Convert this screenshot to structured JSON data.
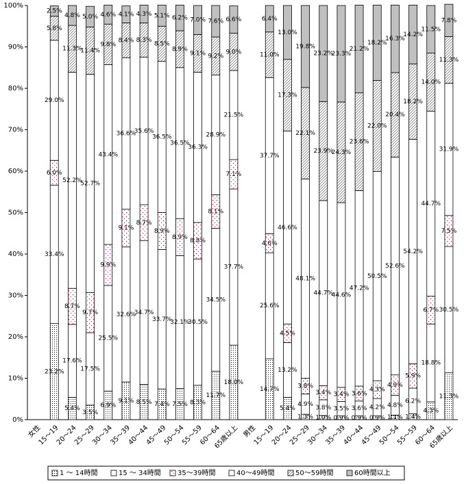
{
  "chart_data": {
    "type": "stacked-bar",
    "categories": [
      "女性",
      "15～19",
      "20～24",
      "25～29",
      "30～34",
      "35～39",
      "40～44",
      "45～49",
      "50～54",
      "55～59",
      "60～64",
      "65歳以上",
      "男性",
      "15～19",
      "20～24",
      "25～29",
      "30～34",
      "35～39",
      "40～44",
      "45～49",
      "50～54",
      "55～59",
      "60～64",
      "65歳以上"
    ],
    "ylim": [
      0,
      100
    ],
    "yticks": [
      {
        "value": 0,
        "label": "0%"
      },
      {
        "value": 10,
        "label": "10%"
      },
      {
        "value": 20,
        "label": "20%"
      },
      {
        "value": 30,
        "label": "30%"
      },
      {
        "value": 40,
        "label": "40%"
      },
      {
        "value": 50,
        "label": "50%"
      },
      {
        "value": 60,
        "label": "60%"
      },
      {
        "value": 70,
        "label": "70%"
      },
      {
        "value": 80,
        "label": "80%"
      },
      {
        "value": 90,
        "label": "90%"
      },
      {
        "value": 100,
        "label": "100%"
      }
    ],
    "series": [
      {
        "name": "1 ～ 14時間",
        "color": "#000000",
        "pattern": "dots",
        "values": [
          null,
          23.2,
          5.4,
          3.5,
          6.9,
          9.1,
          8.5,
          7.4,
          7.5,
          8.3,
          11.7,
          18.0,
          null,
          14.7,
          5.4,
          1.3,
          1.0,
          0.9,
          0.9,
          0.9,
          1.1,
          1.4,
          4.3,
          11.3
        ],
        "value_labels": [
          null,
          "23.2%",
          "5.4%",
          "3.5%",
          "6.9%",
          "9.1%",
          "8.5%",
          "7.4%",
          "7.5%",
          "8.3%",
          "11.7%",
          "18.0%",
          null,
          "14.7%",
          "5.4%",
          "1.3%",
          "1.0%",
          "0.9%",
          "0.9%",
          "0.9%",
          "1.1%",
          "1.4%",
          "4.3%",
          "11.3%"
        ]
      },
      {
        "name": "15 ～ 34時間",
        "color": "#ffffff",
        "pattern": "solid",
        "values": [
          null,
          33.4,
          17.6,
          17.5,
          25.5,
          32.6,
          34.7,
          33.7,
          32.1,
          30.5,
          34.5,
          37.7,
          null,
          25.6,
          13.2,
          4.9,
          3.8,
          3.5,
          3.6,
          4.2,
          4.8,
          6.2,
          18.8,
          30.5
        ],
        "value_labels": [
          null,
          "33.4%",
          "17.6%",
          "17.5%",
          "25.5%",
          "32.6%",
          "34.7%",
          "33.7%",
          "32.1%",
          "30.5%",
          "34.5%",
          "37.7%",
          null,
          "25.6%",
          "13.2%",
          "4.9%",
          "3.8%",
          "3.5%",
          "3.6%",
          "4.2%",
          "4.8%",
          "6.2%",
          "18.8%",
          "30.5%"
        ]
      },
      {
        "name": "35～39時間",
        "color": "#cc0033",
        "pattern": "sparse-dots",
        "values": [
          null,
          6.0,
          8.7,
          9.7,
          9.9,
          9.1,
          8.7,
          8.9,
          8.9,
          8.8,
          8.1,
          7.1,
          null,
          4.6,
          4.5,
          3.8,
          3.4,
          3.4,
          3.6,
          4.3,
          4.9,
          5.9,
          6.7,
          7.5
        ],
        "value_labels": [
          null,
          "6.0%",
          "8.7%",
          "9.7%",
          "9.9%",
          "9.1%",
          "8.7%",
          "8.9%",
          "8.9%",
          "8.8%",
          "8.1%",
          "7.1%",
          null,
          "4.6%",
          "4.5%",
          "3.8%",
          "3.4%",
          "3.4%",
          "3.6%",
          "4.3%",
          "4.9%",
          "5.9%",
          "6.7%",
          "7.5%"
        ]
      },
      {
        "name": "40～49時間",
        "color": "#ffffff",
        "pattern": "solid",
        "values": [
          null,
          29.0,
          52.2,
          52.7,
          43.4,
          36.6,
          35.6,
          36.5,
          36.5,
          36.3,
          28.9,
          21.5,
          null,
          37.7,
          46.6,
          48.1,
          44.7,
          44.6,
          47.2,
          50.5,
          52.6,
          54.2,
          44.7,
          31.9
        ],
        "value_labels": [
          null,
          "29.0%",
          "52.2%",
          "52.7%",
          "43.4%",
          "36.6%",
          "35.6%",
          "36.5%",
          "36.5%",
          "36.3%",
          "28.9%",
          "21.5%",
          null,
          "37.7%",
          "46.6%",
          "48.1%",
          "44.7%",
          "44.6%",
          "47.2%",
          "50.5%",
          "52.6%",
          "54.2%",
          "44.7%",
          "31.9%"
        ]
      },
      {
        "name": "50～59時間",
        "color": "#808080",
        "pattern": "hatch",
        "values": [
          null,
          5.8,
          11.3,
          11.4,
          9.8,
          8.4,
          8.3,
          8.5,
          8.9,
          9.1,
          9.2,
          9.0,
          null,
          11.0,
          17.3,
          22.1,
          23.9,
          24.3,
          23.6,
          22.0,
          20.4,
          18.2,
          14.0,
          11.3
        ],
        "value_labels": [
          null,
          "5.8%",
          "11.3%",
          "11.4%",
          "9.8%",
          "8.4%",
          "8.3%",
          "8.5%",
          "8.9%",
          "9.1%",
          "9.2%",
          "9.0%",
          null,
          "11.0%",
          "17.3%",
          "22.1%",
          "23.9%",
          "24.3%",
          "23.6%",
          "22.0%",
          "20.4%",
          "18.2%",
          "14.0%",
          "11.3%"
        ]
      },
      {
        "name": "60時間以上",
        "color": "#c0c0c0",
        "pattern": "solid",
        "values": [
          null,
          2.5,
          4.8,
          5.0,
          4.6,
          4.1,
          4.3,
          5.1,
          6.2,
          7.0,
          7.6,
          6.6,
          null,
          6.4,
          13.0,
          19.8,
          23.2,
          23.3,
          21.2,
          18.2,
          16.3,
          14.2,
          11.5,
          7.8
        ],
        "value_labels": [
          null,
          "2.5%",
          "4.8%",
          "5.0%",
          "4.6%",
          "4.1%",
          "4.3%",
          "5.1%",
          "6.2%",
          "7.0%",
          "7.6%",
          "6.6%",
          null,
          "6.4%",
          "13.0%",
          "19.8%",
          "23.2%",
          "23.3%",
          "21.2%",
          "18.2%",
          "16.3%",
          "14.2%",
          "11.5%",
          "7.8%"
        ]
      }
    ]
  }
}
